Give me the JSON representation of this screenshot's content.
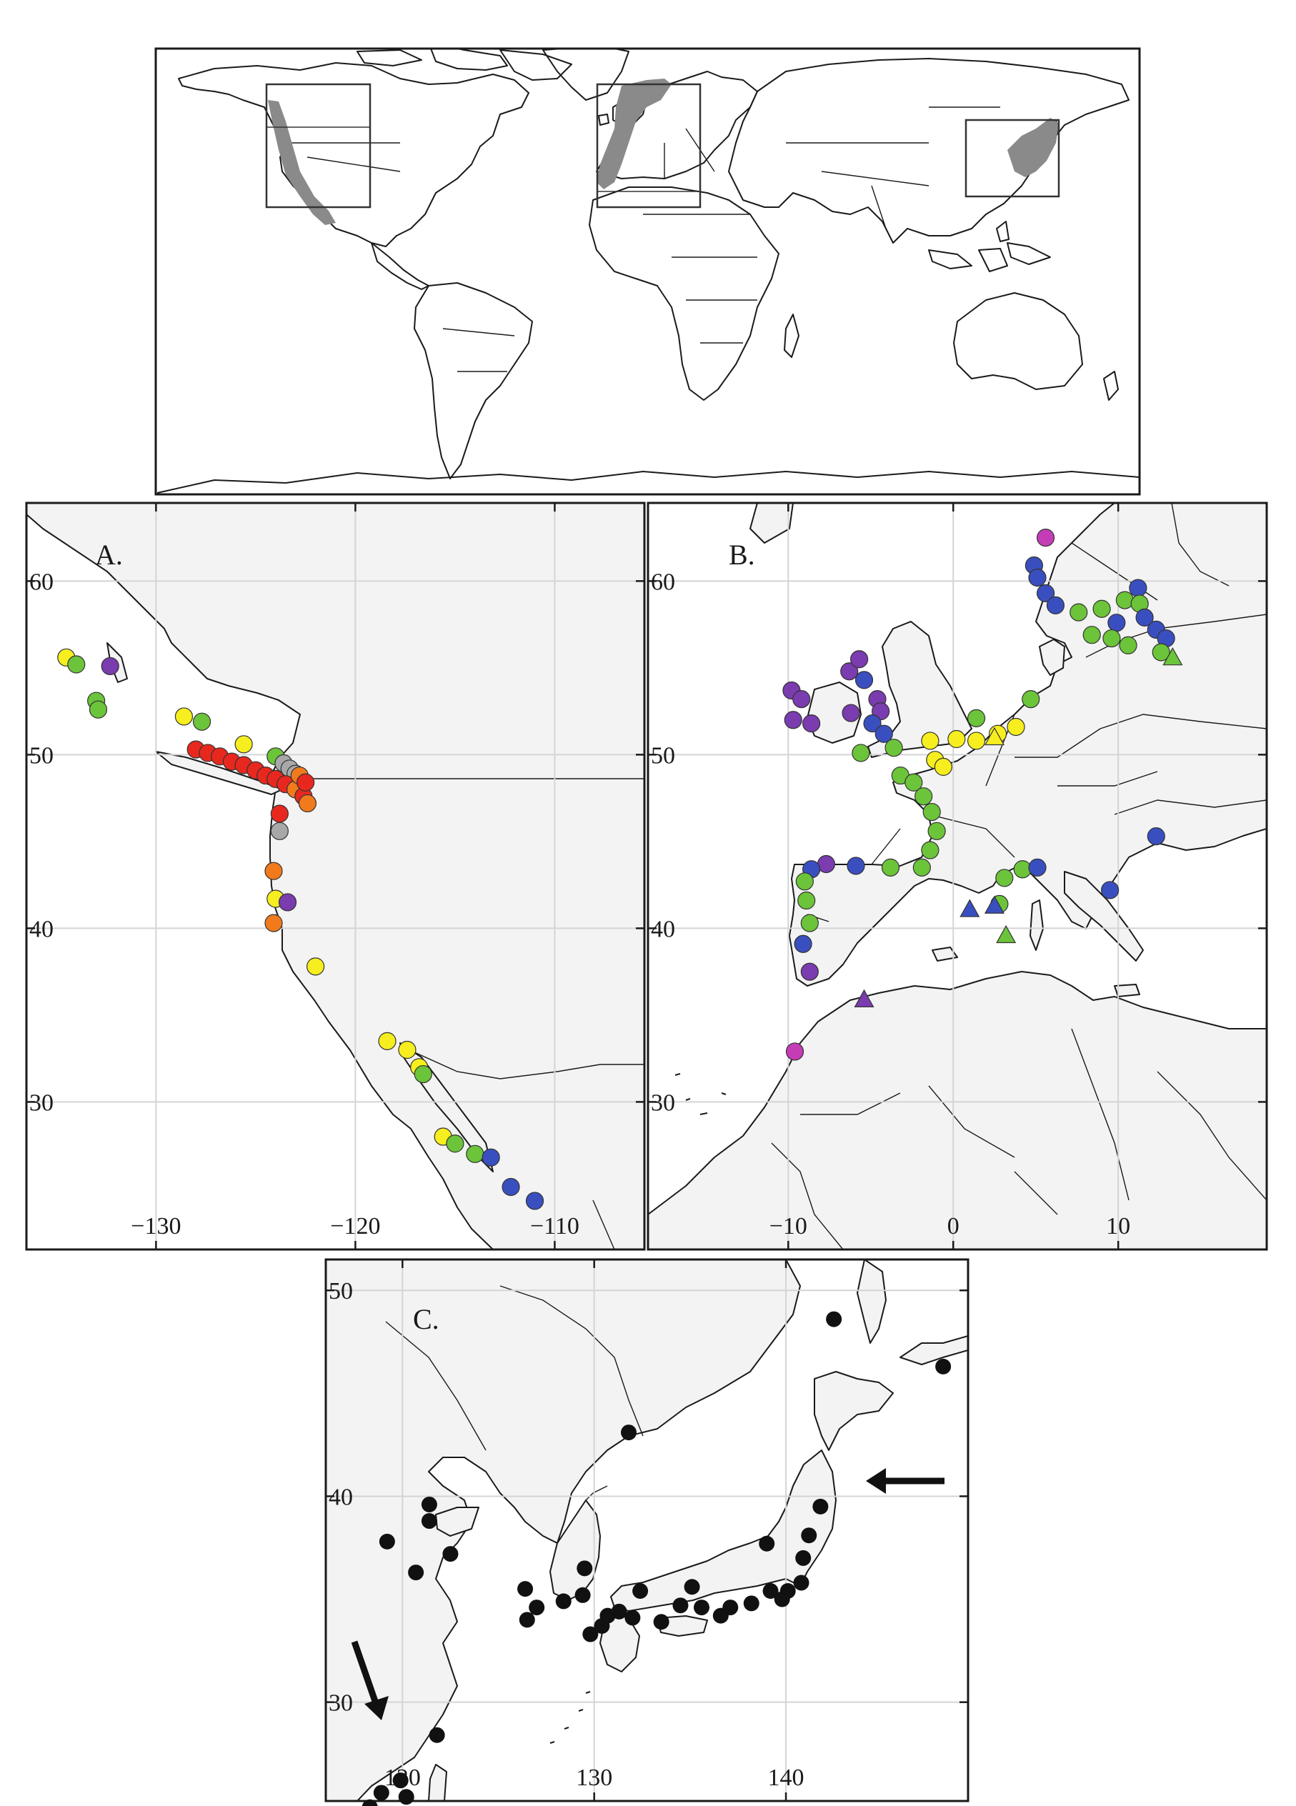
{
  "overview": {
    "highlight_regions": [
      "western-north-america",
      "western-europe",
      "east-asia"
    ]
  },
  "panels": {
    "A": {
      "label": "A.",
      "x_ticks": [
        "−130",
        "−120",
        "−110"
      ],
      "y_ticks": [
        "60",
        "50",
        "40",
        "30"
      ],
      "lon_range": [
        -136.5,
        -105.5
      ],
      "lat_range": [
        21.5,
        64.5
      ],
      "points": [
        {
          "lon": -134.5,
          "lat": 55.6,
          "color": "yellow"
        },
        {
          "lon": -134.0,
          "lat": 55.2,
          "color": "green"
        },
        {
          "lon": -132.3,
          "lat": 55.1,
          "color": "purple"
        },
        {
          "lon": -133.0,
          "lat": 53.1,
          "color": "green"
        },
        {
          "lon": -132.9,
          "lat": 52.6,
          "color": "green"
        },
        {
          "lon": -128.6,
          "lat": 52.2,
          "color": "yellow"
        },
        {
          "lon": -127.7,
          "lat": 51.9,
          "color": "green"
        },
        {
          "lon": -125.6,
          "lat": 50.6,
          "color": "yellow"
        },
        {
          "lon": -124.0,
          "lat": 49.9,
          "color": "green"
        },
        {
          "lon": -123.6,
          "lat": 49.5,
          "color": "gray"
        },
        {
          "lon": -123.3,
          "lat": 49.2,
          "color": "gray"
        },
        {
          "lon": -123.0,
          "lat": 48.9,
          "color": "gray"
        },
        {
          "lon": -128.0,
          "lat": 50.3,
          "color": "red"
        },
        {
          "lon": -127.4,
          "lat": 50.1,
          "color": "red"
        },
        {
          "lon": -126.8,
          "lat": 49.9,
          "color": "red"
        },
        {
          "lon": -126.2,
          "lat": 49.6,
          "color": "red"
        },
        {
          "lon": -125.6,
          "lat": 49.4,
          "color": "red"
        },
        {
          "lon": -125.0,
          "lat": 49.1,
          "color": "red"
        },
        {
          "lon": -124.5,
          "lat": 48.8,
          "color": "red"
        },
        {
          "lon": -124.0,
          "lat": 48.6,
          "color": "red"
        },
        {
          "lon": -123.5,
          "lat": 48.3,
          "color": "red"
        },
        {
          "lon": -123.0,
          "lat": 48.0,
          "color": "orange"
        },
        {
          "lon": -122.6,
          "lat": 47.6,
          "color": "red"
        },
        {
          "lon": -122.4,
          "lat": 47.2,
          "color": "orange"
        },
        {
          "lon": -122.8,
          "lat": 48.8,
          "color": "orange"
        },
        {
          "lon": -122.5,
          "lat": 48.4,
          "color": "red"
        },
        {
          "lon": -123.8,
          "lat": 46.6,
          "color": "red"
        },
        {
          "lon": -123.8,
          "lat": 45.6,
          "color": "gray"
        },
        {
          "lon": -124.1,
          "lat": 43.3,
          "color": "orange"
        },
        {
          "lon": -124.0,
          "lat": 41.7,
          "color": "yellow"
        },
        {
          "lon": -123.4,
          "lat": 41.5,
          "color": "purple"
        },
        {
          "lon": -124.1,
          "lat": 40.3,
          "color": "orange"
        },
        {
          "lon": -122.0,
          "lat": 37.8,
          "color": "yellow"
        },
        {
          "lon": -118.4,
          "lat": 33.5,
          "color": "yellow"
        },
        {
          "lon": -117.4,
          "lat": 33.0,
          "color": "yellow"
        },
        {
          "lon": -116.8,
          "lat": 32.0,
          "color": "yellow"
        },
        {
          "lon": -116.6,
          "lat": 31.6,
          "color": "green"
        },
        {
          "lon": -115.6,
          "lat": 28.0,
          "color": "yellow"
        },
        {
          "lon": -115.0,
          "lat": 27.6,
          "color": "green"
        },
        {
          "lon": -114.0,
          "lat": 27.0,
          "color": "green"
        },
        {
          "lon": -113.2,
          "lat": 26.8,
          "color": "blue"
        },
        {
          "lon": -112.2,
          "lat": 25.1,
          "color": "blue"
        },
        {
          "lon": -111.0,
          "lat": 24.3,
          "color": "blue"
        }
      ]
    },
    "B": {
      "label": "B.",
      "x_ticks": [
        "−10",
        "0",
        "10"
      ],
      "y_ticks": [
        "60",
        "50",
        "40",
        "30"
      ],
      "lon_range": [
        -18.5,
        19
      ],
      "lat_range": [
        21.5,
        64.5
      ],
      "points": [
        {
          "lon": 5.6,
          "lat": 62.5,
          "color": "magenta"
        },
        {
          "lon": 4.9,
          "lat": 60.9,
          "color": "blue"
        },
        {
          "lon": 5.1,
          "lat": 60.2,
          "color": "blue"
        },
        {
          "lon": 5.6,
          "lat": 59.3,
          "color": "blue"
        },
        {
          "lon": 6.2,
          "lat": 58.6,
          "color": "blue"
        },
        {
          "lon": 7.6,
          "lat": 58.2,
          "color": "green"
        },
        {
          "lon": 9.0,
          "lat": 58.4,
          "color": "green"
        },
        {
          "lon": 10.4,
          "lat": 58.9,
          "color": "green"
        },
        {
          "lon": 11.2,
          "lat": 59.6,
          "color": "blue"
        },
        {
          "lon": 11.3,
          "lat": 58.7,
          "color": "green"
        },
        {
          "lon": 11.6,
          "lat": 57.9,
          "color": "blue"
        },
        {
          "lon": 12.3,
          "lat": 57.2,
          "color": "blue"
        },
        {
          "lon": 12.9,
          "lat": 56.7,
          "color": "blue"
        },
        {
          "lon": 9.9,
          "lat": 57.6,
          "color": "blue"
        },
        {
          "lon": 8.4,
          "lat": 56.9,
          "color": "green"
        },
        {
          "lon": 9.6,
          "lat": 56.7,
          "color": "green"
        },
        {
          "lon": 10.6,
          "lat": 56.3,
          "color": "green"
        },
        {
          "lon": 12.6,
          "lat": 55.9,
          "color": "green"
        },
        {
          "lon": -9.8,
          "lat": 53.7,
          "color": "purple"
        },
        {
          "lon": -9.2,
          "lat": 53.2,
          "color": "purple"
        },
        {
          "lon": -9.7,
          "lat": 52.0,
          "color": "purple"
        },
        {
          "lon": -8.6,
          "lat": 51.8,
          "color": "purple"
        },
        {
          "lon": -6.3,
          "lat": 54.8,
          "color": "purple"
        },
        {
          "lon": -5.7,
          "lat": 55.5,
          "color": "purple"
        },
        {
          "lon": -5.4,
          "lat": 54.3,
          "color": "blue"
        },
        {
          "lon": -6.2,
          "lat": 52.4,
          "color": "purple"
        },
        {
          "lon": -4.6,
          "lat": 53.2,
          "color": "purple"
        },
        {
          "lon": -4.4,
          "lat": 52.5,
          "color": "purple"
        },
        {
          "lon": -4.9,
          "lat": 51.8,
          "color": "blue"
        },
        {
          "lon": -4.2,
          "lat": 51.2,
          "color": "blue"
        },
        {
          "lon": -5.6,
          "lat": 50.1,
          "color": "green"
        },
        {
          "lon": -3.6,
          "lat": 50.4,
          "color": "green"
        },
        {
          "lon": -1.4,
          "lat": 50.8,
          "color": "yellow"
        },
        {
          "lon": 0.2,
          "lat": 50.9,
          "color": "yellow"
        },
        {
          "lon": 1.4,
          "lat": 50.8,
          "color": "yellow"
        },
        {
          "lon": -1.1,
          "lat": 49.7,
          "color": "yellow"
        },
        {
          "lon": -0.6,
          "lat": 49.3,
          "color": "yellow"
        },
        {
          "lon": -3.2,
          "lat": 48.8,
          "color": "green"
        },
        {
          "lon": -2.4,
          "lat": 48.4,
          "color": "green"
        },
        {
          "lon": -1.8,
          "lat": 47.6,
          "color": "green"
        },
        {
          "lon": -1.3,
          "lat": 46.7,
          "color": "green"
        },
        {
          "lon": -1.0,
          "lat": 45.6,
          "color": "green"
        },
        {
          "lon": -1.4,
          "lat": 44.5,
          "color": "green"
        },
        {
          "lon": -1.9,
          "lat": 43.5,
          "color": "green"
        },
        {
          "lon": -3.8,
          "lat": 43.5,
          "color": "green"
        },
        {
          "lon": -5.9,
          "lat": 43.6,
          "color": "blue"
        },
        {
          "lon": -7.7,
          "lat": 43.7,
          "color": "purple"
        },
        {
          "lon": -8.6,
          "lat": 43.4,
          "color": "blue"
        },
        {
          "lon": -9.0,
          "lat": 42.7,
          "color": "green"
        },
        {
          "lon": -8.9,
          "lat": 41.6,
          "color": "green"
        },
        {
          "lon": -8.7,
          "lat": 40.3,
          "color": "green"
        },
        {
          "lon": -9.1,
          "lat": 39.1,
          "color": "blue"
        },
        {
          "lon": -8.7,
          "lat": 37.5,
          "color": "purple"
        },
        {
          "lon": -9.6,
          "lat": 32.9,
          "color": "magenta"
        },
        {
          "lon": 2.8,
          "lat": 41.4,
          "color": "green"
        },
        {
          "lon": 3.1,
          "lat": 42.9,
          "color": "green"
        },
        {
          "lon": 4.2,
          "lat": 43.4,
          "color": "green"
        },
        {
          "lon": 5.1,
          "lat": 43.5,
          "color": "blue"
        },
        {
          "lon": 3.8,
          "lat": 51.6,
          "color": "yellow"
        },
        {
          "lon": 2.7,
          "lat": 51.2,
          "color": "yellow"
        },
        {
          "lon": 1.4,
          "lat": 52.1,
          "color": "green"
        },
        {
          "lon": 4.7,
          "lat": 53.2,
          "color": "green"
        },
        {
          "lon": 12.3,
          "lat": 45.3,
          "color": "blue"
        },
        {
          "lon": 9.5,
          "lat": 42.2,
          "color": "blue"
        }
      ],
      "triangles": [
        {
          "lon": 2.5,
          "lat": 51.0,
          "color": "yellow"
        },
        {
          "lon": 13.3,
          "lat": 55.6,
          "color": "green"
        },
        {
          "lon": 1.0,
          "lat": 41.1,
          "color": "blue"
        },
        {
          "lon": 2.5,
          "lat": 41.3,
          "color": "blue"
        },
        {
          "lon": 3.2,
          "lat": 39.6,
          "color": "green"
        },
        {
          "lon": -5.4,
          "lat": 35.9,
          "color": "purple"
        }
      ]
    },
    "C": {
      "label": "C.",
      "x_ticks": [
        "120",
        "130",
        "140"
      ],
      "y_ticks": [
        "50",
        "40",
        "30"
      ],
      "lon_range": [
        116,
        149.5
      ],
      "lat_range": [
        25.2,
        51.5
      ],
      "points": [
        {
          "lon": 142.5,
          "lat": 48.6
        },
        {
          "lon": 148.2,
          "lat": 46.3
        },
        {
          "lon": 131.8,
          "lat": 43.1
        },
        {
          "lon": 141.8,
          "lat": 39.5
        },
        {
          "lon": 141.2,
          "lat": 38.1
        },
        {
          "lon": 140.9,
          "lat": 37.0
        },
        {
          "lon": 140.8,
          "lat": 35.8
        },
        {
          "lon": 140.1,
          "lat": 35.4
        },
        {
          "lon": 139.8,
          "lat": 35.0
        },
        {
          "lon": 139.2,
          "lat": 35.4
        },
        {
          "lon": 139.0,
          "lat": 37.7
        },
        {
          "lon": 138.2,
          "lat": 34.8
        },
        {
          "lon": 137.1,
          "lat": 34.6
        },
        {
          "lon": 136.6,
          "lat": 34.2
        },
        {
          "lon": 135.6,
          "lat": 34.6
        },
        {
          "lon": 135.1,
          "lat": 35.6
        },
        {
          "lon": 134.5,
          "lat": 34.7
        },
        {
          "lon": 133.5,
          "lat": 33.9
        },
        {
          "lon": 132.4,
          "lat": 35.4
        },
        {
          "lon": 132.0,
          "lat": 34.1
        },
        {
          "lon": 131.3,
          "lat": 34.4
        },
        {
          "lon": 130.7,
          "lat": 34.2
        },
        {
          "lon": 130.4,
          "lat": 33.7
        },
        {
          "lon": 129.8,
          "lat": 33.3
        },
        {
          "lon": 129.4,
          "lat": 35.2
        },
        {
          "lon": 129.5,
          "lat": 36.5
        },
        {
          "lon": 128.4,
          "lat": 34.9
        },
        {
          "lon": 127.0,
          "lat": 34.6
        },
        {
          "lon": 126.4,
          "lat": 35.5
        },
        {
          "lon": 126.5,
          "lat": 34.0
        },
        {
          "lon": 121.4,
          "lat": 39.6
        },
        {
          "lon": 121.4,
          "lat": 38.8
        },
        {
          "lon": 122.5,
          "lat": 37.2
        },
        {
          "lon": 120.7,
          "lat": 36.3
        },
        {
          "lon": 119.2,
          "lat": 37.8
        },
        {
          "lon": 121.8,
          "lat": 28.4
        },
        {
          "lon": 119.9,
          "lat": 26.2
        },
        {
          "lon": 120.2,
          "lat": 25.4
        },
        {
          "lon": 118.9,
          "lat": 25.6
        },
        {
          "lon": 118.3,
          "lat": 24.9
        },
        {
          "lon": 117.6,
          "lat": 24.5
        }
      ],
      "arrows": [
        "pointing-left-at-northeast-honshu",
        "pointing-down-right-at-south-china-coast"
      ]
    }
  },
  "colors": {
    "red": "#e8281e",
    "orange": "#f07a1c",
    "yellow": "#f6ee1e",
    "green": "#6cc43a",
    "blue": "#3a4fbf",
    "purple": "#7a3cae",
    "magenta": "#c43cb6",
    "gray": "#a8a8a8",
    "black": "#111111",
    "highlight": "#8a8a8a"
  }
}
